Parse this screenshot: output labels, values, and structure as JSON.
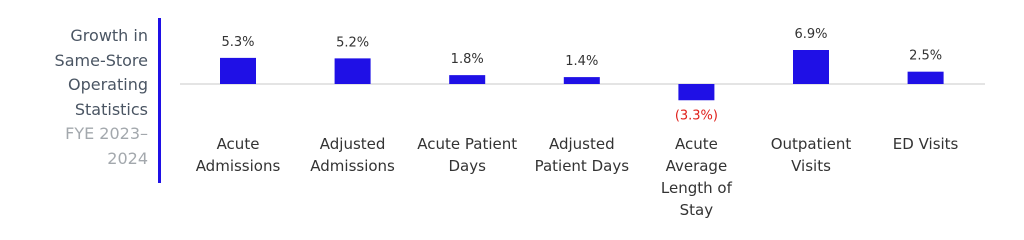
{
  "chart_data": {
    "type": "bar",
    "title": "Growth in Same-Store Operating Statistics",
    "subtitle": "FYE 2023–2024",
    "categories": [
      "Acute Admissions",
      "Adjusted Admissions",
      "Acute Patient Days",
      "Adjusted Patient Days",
      "Acute Average Length of Stay",
      "Outpatient Visits",
      "ED Visits"
    ],
    "values": [
      5.3,
      5.2,
      1.8,
      1.4,
      -3.3,
      6.9,
      2.5
    ],
    "value_labels": [
      "5.3%",
      "5.2%",
      "1.8%",
      "1.4%",
      "(3.3%)",
      "6.9%",
      "2.5%"
    ],
    "color": "#1f10e6",
    "negative_label_color": "#e0201b"
  }
}
